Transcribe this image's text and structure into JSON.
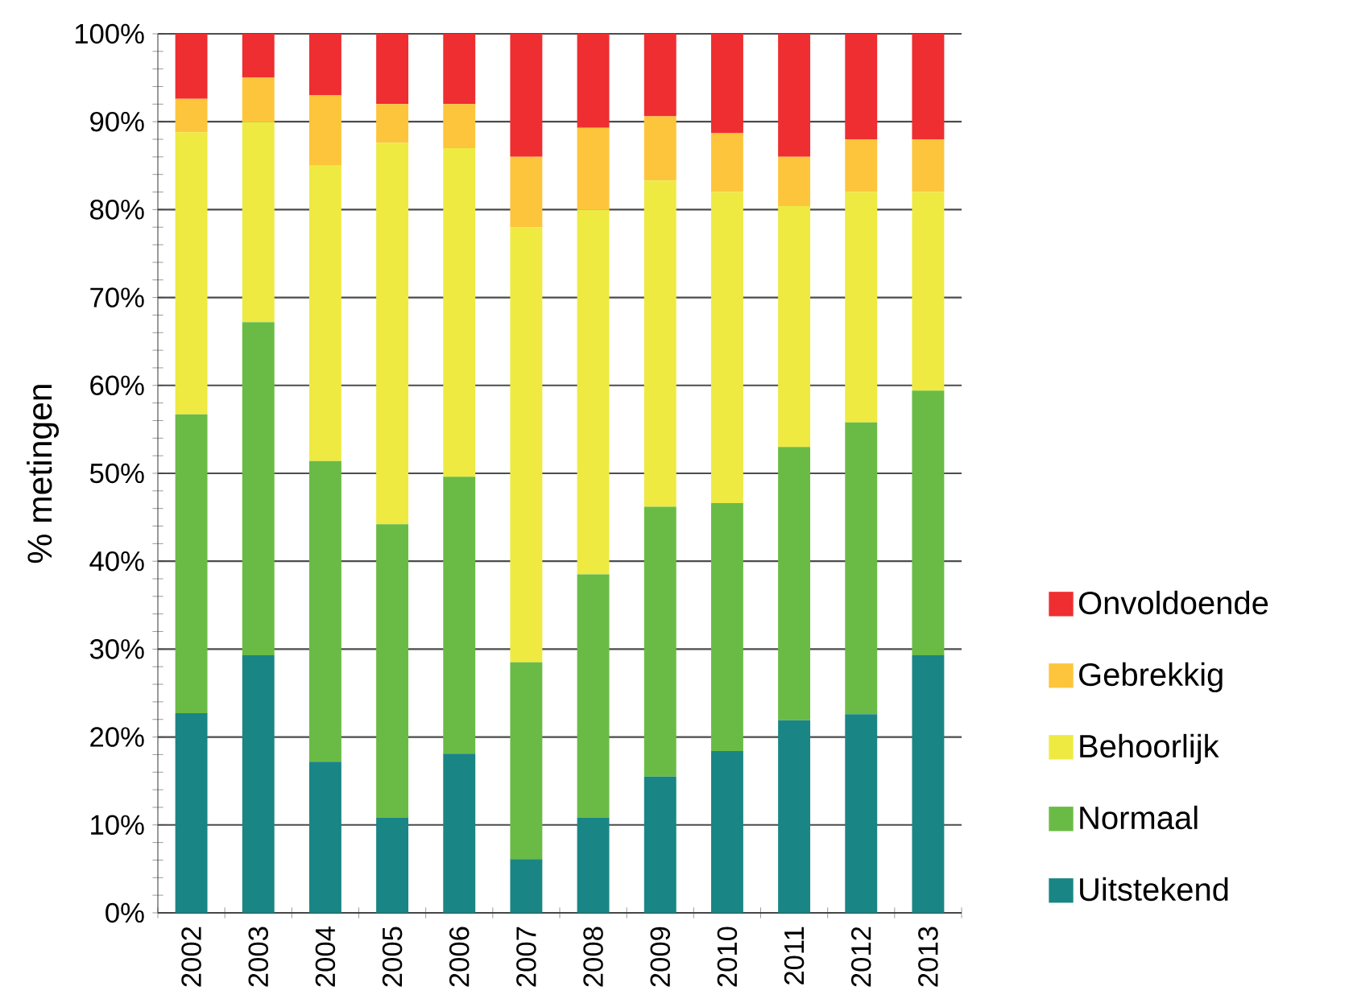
{
  "chart_data": {
    "type": "bar",
    "stacked": true,
    "ylabel": "% metingen",
    "categories": [
      "2002",
      "2003",
      "2004",
      "2005",
      "2006",
      "2007",
      "2008",
      "2009",
      "2010",
      "2011",
      "2012",
      "2013"
    ],
    "series": [
      {
        "name": "Uitstekend",
        "color": "#1a8585",
        "values": [
          22.7,
          29.3,
          17.2,
          10.8,
          18.1,
          6.1,
          10.8,
          15.5,
          18.4,
          21.9,
          22.6,
          29.3
        ]
      },
      {
        "name": "Normaal",
        "color": "#6abb45",
        "values": [
          34.0,
          37.9,
          34.2,
          33.4,
          31.5,
          22.4,
          27.7,
          30.7,
          28.2,
          31.1,
          33.2,
          30.1
        ]
      },
      {
        "name": "Behoorlijk",
        "color": "#eeea42",
        "values": [
          32.1,
          22.8,
          33.6,
          43.4,
          37.4,
          49.5,
          41.5,
          37.1,
          35.4,
          27.4,
          26.2,
          22.6
        ]
      },
      {
        "name": "Gebrekkig",
        "color": "#fdc53b",
        "values": [
          3.8,
          5.0,
          8.0,
          4.4,
          5.0,
          8.0,
          9.3,
          7.3,
          6.7,
          5.6,
          6.0,
          6.0
        ]
      },
      {
        "name": "Onvoldoende",
        "color": "#ee2e31",
        "values": [
          7.4,
          5.0,
          7.0,
          8.0,
          8.0,
          14.0,
          10.7,
          9.4,
          11.3,
          14.0,
          12.0,
          12.0
        ]
      }
    ],
    "ylim": [
      0,
      100
    ],
    "yticks": [
      {
        "value": 0,
        "label": "0%"
      },
      {
        "value": 10,
        "label": "10%"
      },
      {
        "value": 20,
        "label": "20%"
      },
      {
        "value": 30,
        "label": "30%"
      },
      {
        "value": 40,
        "label": "40%"
      },
      {
        "value": 50,
        "label": "50%"
      },
      {
        "value": 60,
        "label": "60%"
      },
      {
        "value": 70,
        "label": "70%"
      },
      {
        "value": 80,
        "label": "80%"
      },
      {
        "value": 90,
        "label": "90%"
      },
      {
        "value": 100,
        "label": "100%"
      }
    ],
    "grid": "y",
    "legend": "right"
  }
}
